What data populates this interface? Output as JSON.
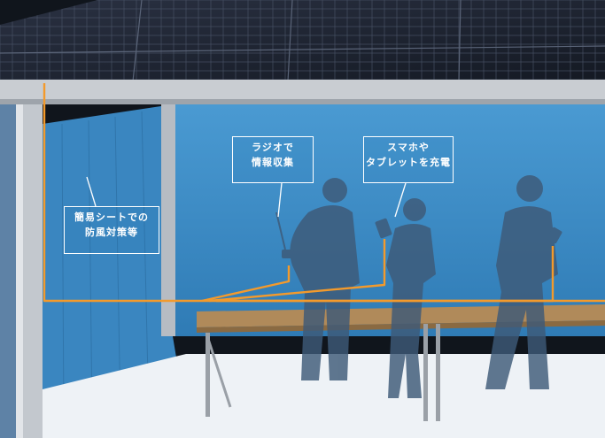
{
  "callouts": {
    "windbreak": {
      "line1": "簡易シートでの",
      "line2": "防風対策等"
    },
    "radio": {
      "line1": "ラジオで",
      "line2": "情報収集"
    },
    "charging": {
      "line1": "スマホや",
      "line2": "タブレットを充電"
    }
  },
  "colors": {
    "background": "#10151c",
    "curtain": "#3d8fc9",
    "frame": "#c9cdd2",
    "solar_panel": "#1c2230",
    "floor": "#eef2f6",
    "table_top": "#b08a5a",
    "cable": "#f39a2c",
    "silhouette": "#3e5a78"
  }
}
